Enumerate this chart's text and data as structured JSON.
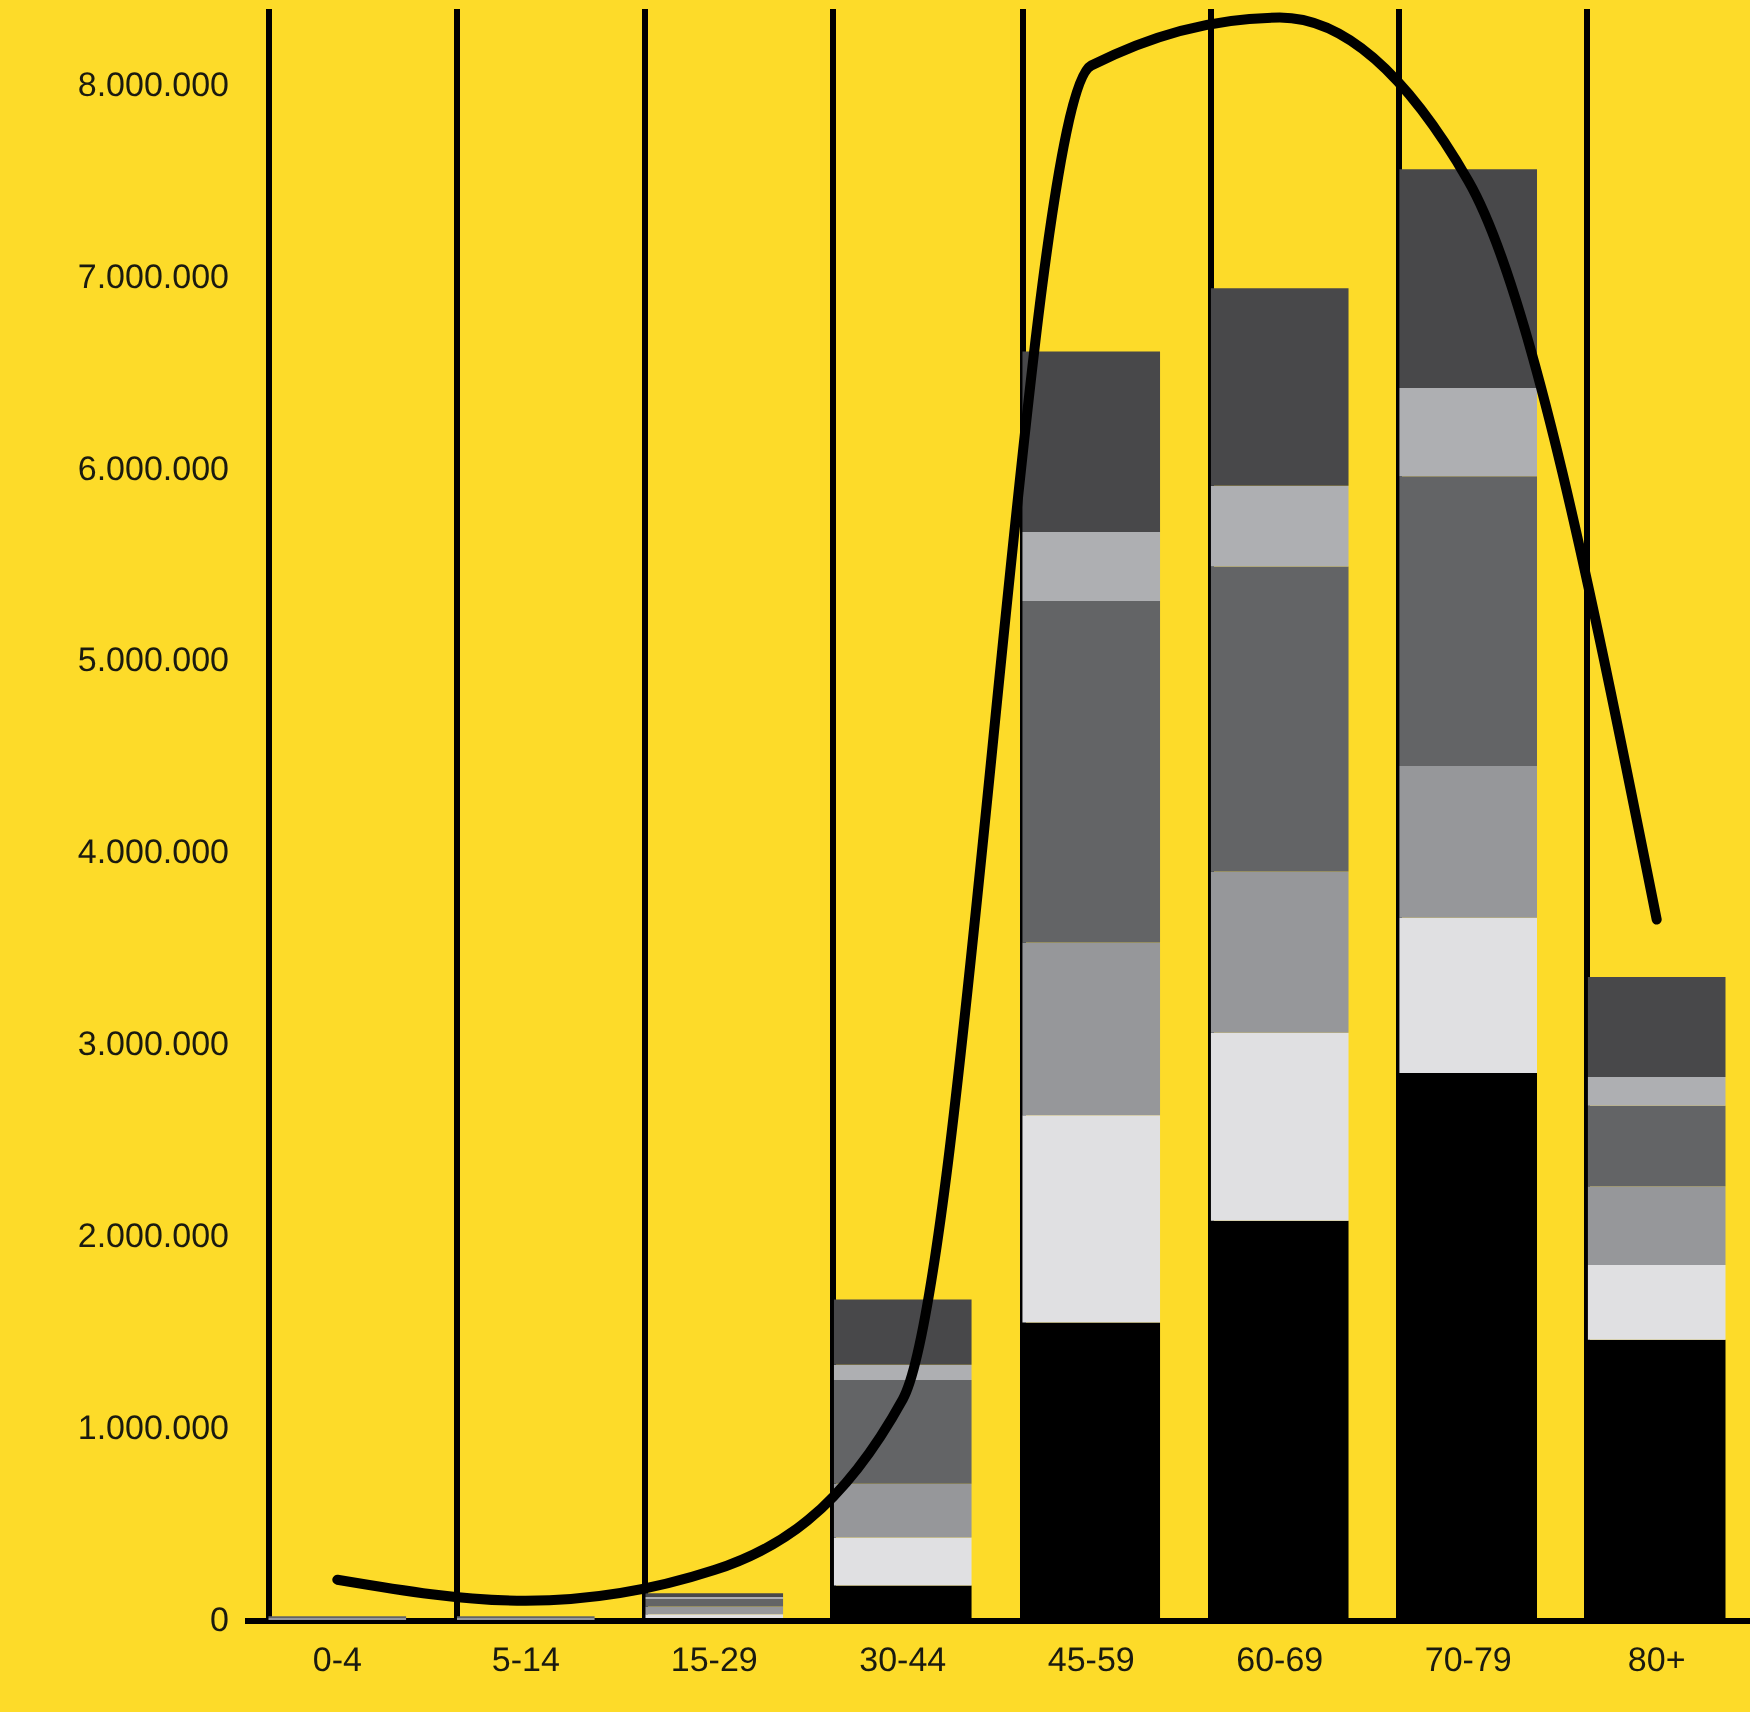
{
  "chart_data": {
    "type": "bar",
    "stacked": true,
    "grid": "x",
    "categories": [
      "0-4",
      "5-14",
      "15-29",
      "30-44",
      "45-59",
      "60-69",
      "70-79",
      "80+"
    ],
    "ylim": [
      0,
      8400000
    ],
    "yticks": [
      {
        "value": 0,
        "label": "0"
      },
      {
        "value": 1000000,
        "label": "1.000.000"
      },
      {
        "value": 2000000,
        "label": "2.000.000"
      },
      {
        "value": 3000000,
        "label": "3.000.000"
      },
      {
        "value": 4000000,
        "label": "4.000.000"
      },
      {
        "value": 5000000,
        "label": "5.000.000"
      },
      {
        "value": 6000000,
        "label": "6.000.000"
      },
      {
        "value": 7000000,
        "label": "7.000.000"
      },
      {
        "value": 8000000,
        "label": "8.000.000"
      }
    ],
    "series": [
      {
        "color": "#000000",
        "values": [
          0,
          0,
          10000,
          180000,
          1550000,
          2080000,
          2850000,
          1460000
        ]
      },
      {
        "color": "#e0e0e2",
        "values": [
          0,
          0,
          20000,
          250000,
          1080000,
          980000,
          810000,
          390000
        ]
      },
      {
        "color": "#96979a",
        "values": [
          10000,
          10000,
          40000,
          280000,
          900000,
          840000,
          790000,
          410000
        ]
      },
      {
        "color": "#636466",
        "values": [
          10000,
          10000,
          40000,
          540000,
          1780000,
          1590000,
          1510000,
          420000
        ]
      },
      {
        "color": "#aeafb2",
        "values": [
          0,
          0,
          10000,
          80000,
          360000,
          420000,
          460000,
          150000
        ]
      },
      {
        "color": "#48484a",
        "values": [
          0,
          0,
          20000,
          340000,
          940000,
          1030000,
          1140000,
          520000
        ]
      },
      {
        "type": "line",
        "color": "#000000",
        "values": [
          210000,
          100000,
          260000,
          1150000,
          8100000,
          8350000,
          7500000,
          3650000
        ]
      }
    ]
  }
}
